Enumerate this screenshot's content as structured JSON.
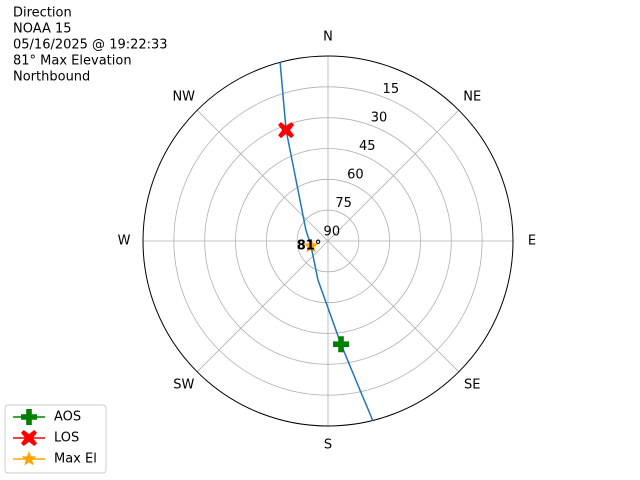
{
  "chart_data": {
    "type": "polar",
    "title_lines": [
      "Direction",
      "NOAA 15",
      "05/16/2025 @ 19:22:33",
      "81° Max Elevation",
      "Northbound"
    ],
    "theta_ticks": [
      {
        "value": 0,
        "label": "N"
      },
      {
        "value": 45,
        "label": "NE"
      },
      {
        "value": 90,
        "label": "E"
      },
      {
        "value": 135,
        "label": "SE"
      },
      {
        "value": 180,
        "label": "S"
      },
      {
        "value": 225,
        "label": "SW"
      },
      {
        "value": 270,
        "label": "W"
      },
      {
        "value": 315,
        "label": "NW"
      }
    ],
    "rlim": [
      0,
      90
    ],
    "rticks": [
      15,
      30,
      45,
      60,
      75,
      90
    ],
    "grid": true,
    "track": {
      "color": "#1f77b4",
      "azimuth": [
        345.0,
        339.3,
        332.3,
        296.6,
        253.6,
        194.4,
        172.8,
        167.9,
        166.0
      ],
      "elevation": [
        0,
        32.3,
        56.5,
        78.0,
        81.4,
        70.4,
        39.4,
        15.9,
        0
      ]
    },
    "series": [
      {
        "name": "AOS",
        "color": "#008000",
        "marker": "plus",
        "azimuth": [
          172.8
        ],
        "elevation": [
          39.4
        ]
      },
      {
        "name": "LOS",
        "color": "#ff0000",
        "marker": "x",
        "azimuth": [
          339.3
        ],
        "elevation": [
          32.3
        ]
      },
      {
        "name": "Max El",
        "color": "#ffa500",
        "marker": "star",
        "azimuth": [
          253.6
        ],
        "elevation": [
          81.4
        ]
      }
    ],
    "annotation": "81°",
    "legend": "lower left"
  }
}
